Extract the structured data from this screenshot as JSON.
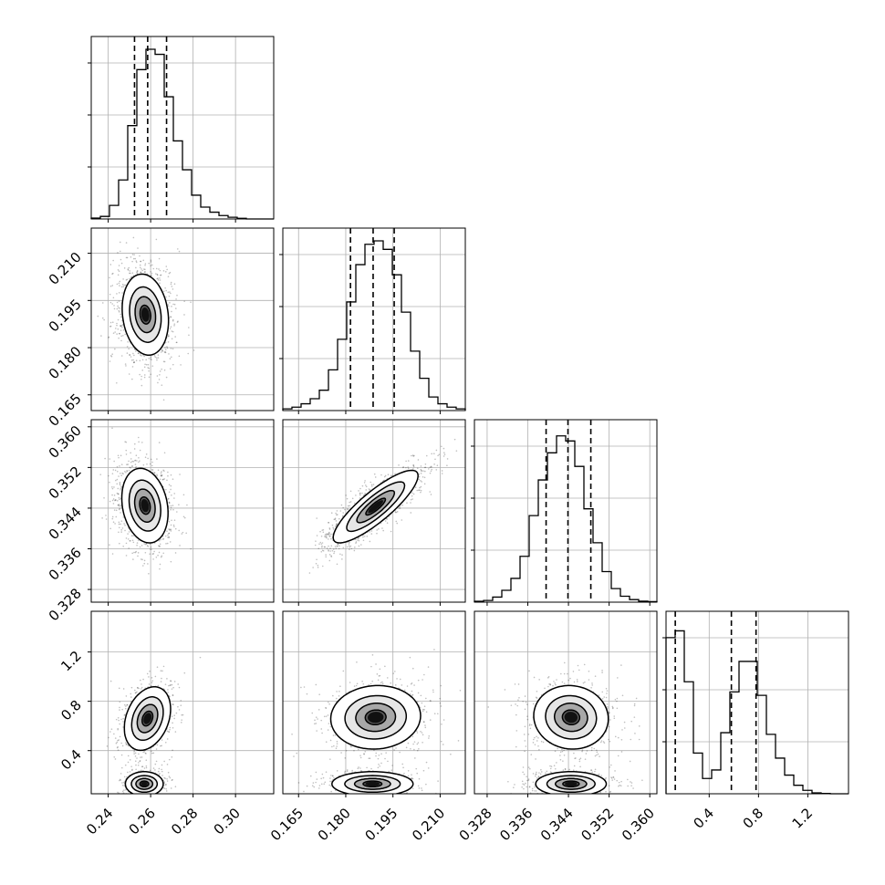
{
  "chart_data": {
    "type": "corner",
    "params": [
      {
        "range": [
          0.232,
          0.318
        ],
        "ticks": [
          "0.24",
          "0.26",
          "0.28",
          "0.30"
        ],
        "tick_values": [
          0.24,
          0.26,
          0.28,
          0.3
        ],
        "quantiles": [
          0.2524,
          0.2586,
          0.2675
        ]
      },
      {
        "range": [
          0.16,
          0.218
        ],
        "ticks": [
          "0.165",
          "0.180",
          "0.195",
          "0.210"
        ],
        "tick_values": [
          0.165,
          0.18,
          0.195,
          0.21
        ],
        "quantiles": [
          0.1815,
          0.1887,
          0.1954
        ]
      },
      {
        "range": [
          0.3255,
          0.3614
        ],
        "ticks": [
          "0.328",
          "0.336",
          "0.344",
          "0.352",
          "0.360"
        ],
        "tick_values": [
          0.328,
          0.336,
          0.344,
          0.352,
          0.36
        ],
        "quantiles": [
          0.3396,
          0.3439,
          0.3484
        ]
      },
      {
        "range": [
          0.05,
          1.53
        ],
        "ticks": [
          "0.4",
          "0.8",
          "1.2"
        ],
        "tick_values": [
          0.4,
          0.8,
          1.2
        ],
        "quantiles": [
          0.125,
          0.58,
          0.78
        ]
      }
    ],
    "histograms": [
      {
        "values": [
          0.005,
          0.015,
          0.08,
          0.23,
          0.55,
          0.88,
          1.0,
          0.97,
          0.72,
          0.46,
          0.29,
          0.14,
          0.07,
          0.04,
          0.02,
          0.01,
          0.004,
          0.0,
          0.0,
          0.0
        ]
      },
      {
        "values": [
          0.01,
          0.02,
          0.04,
          0.07,
          0.12,
          0.24,
          0.42,
          0.64,
          0.86,
          0.98,
          1.0,
          0.95,
          0.8,
          0.58,
          0.35,
          0.19,
          0.08,
          0.04,
          0.02,
          0.01
        ]
      },
      {
        "values": [
          0.005,
          0.01,
          0.03,
          0.07,
          0.14,
          0.27,
          0.51,
          0.72,
          0.88,
          0.98,
          0.95,
          0.8,
          0.55,
          0.35,
          0.18,
          0.08,
          0.035,
          0.015,
          0.006,
          0.003
        ]
      },
      {
        "values": [
          0.92,
          0.96,
          0.66,
          0.24,
          0.09,
          0.14,
          0.36,
          0.6,
          0.78,
          0.78,
          0.58,
          0.35,
          0.21,
          0.11,
          0.05,
          0.02,
          0.005,
          0.002,
          0.0,
          0.0
        ]
      }
    ],
    "blobs": [
      {
        "pair": [
          1,
          0
        ],
        "modes": [
          {
            "mu": [
              0.2575,
              0.1905
            ],
            "sd": [
              0.0055,
              0.0065
            ],
            "rho": -0.15,
            "w": 1.0
          }
        ]
      },
      {
        "pair": [
          2,
          0
        ],
        "modes": [
          {
            "mu": [
              0.2573,
              0.3445
            ],
            "sd": [
              0.0055,
              0.0037
            ],
            "rho": -0.2,
            "w": 1.0
          }
        ]
      },
      {
        "pair": [
          2,
          1
        ],
        "modes": [
          {
            "mu": [
              0.1895,
              0.3443
            ],
            "sd": [
              0.0068,
              0.0036
            ],
            "rho": 0.85,
            "w": 1.0
          }
        ]
      },
      {
        "pair": [
          3,
          0
        ],
        "modes": [
          {
            "mu": [
              0.2585,
              0.66
            ],
            "sd": [
              0.0055,
              0.13
            ],
            "rho": 0.3,
            "w": 0.62
          },
          {
            "mu": [
              0.257,
              0.13
            ],
            "sd": [
              0.0045,
              0.05
            ],
            "rho": 0.0,
            "w": 0.38
          }
        ]
      },
      {
        "pair": [
          3,
          1
        ],
        "modes": [
          {
            "mu": [
              0.1895,
              0.67
            ],
            "sd": [
              0.0072,
              0.13
            ],
            "rho": 0.05,
            "w": 0.62
          },
          {
            "mu": [
              0.1885,
              0.13
            ],
            "sd": [
              0.0065,
              0.05
            ],
            "rho": 0.0,
            "w": 0.38
          }
        ]
      },
      {
        "pair": [
          3,
          2
        ],
        "modes": [
          {
            "mu": [
              0.3445,
              0.67
            ],
            "sd": [
              0.0037,
              0.13
            ],
            "rho": -0.05,
            "w": 0.62
          },
          {
            "mu": [
              0.3445,
              0.13
            ],
            "sd": [
              0.0035,
              0.05
            ],
            "rho": 0.0,
            "w": 0.38
          }
        ]
      }
    ]
  }
}
